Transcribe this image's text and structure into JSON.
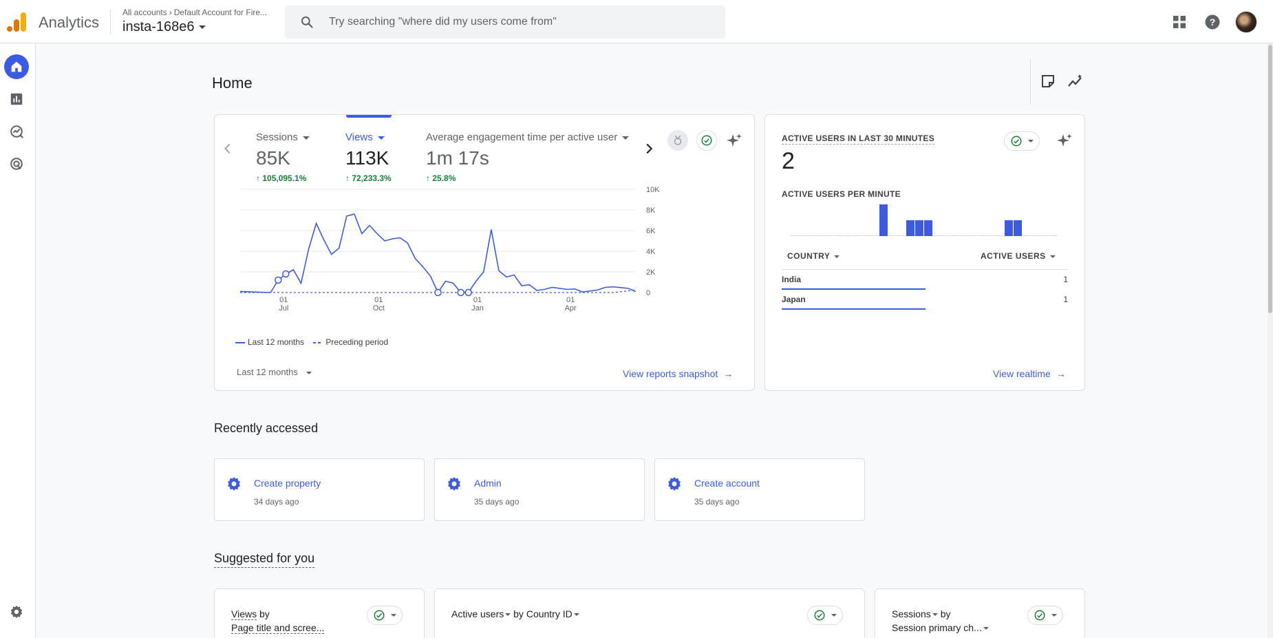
{
  "app": {
    "title": "Analytics",
    "breadcrumb": [
      "All accounts",
      "Default Account for Fire..."
    ],
    "property": "insta-168e6"
  },
  "search": {
    "placeholder": "Try searching \"where did my users come from\""
  },
  "header_icons": [
    "apps-icon",
    "help-icon",
    "avatar"
  ],
  "rail": [
    "home-icon",
    "reports-icon",
    "explore-icon",
    "advertising-icon",
    "settings-icon"
  ],
  "page": {
    "title": "Home"
  },
  "metrics": [
    {
      "label": "Sessions",
      "value": "85K",
      "delta": "105,095.1%"
    },
    {
      "label": "Views",
      "value": "113K",
      "delta": "72,233.3%"
    },
    {
      "label": "Average engagement time per active user",
      "value": "1m 17s",
      "delta": "25.8%"
    }
  ],
  "chart_data": {
    "type": "line",
    "x_tick_labels": [
      [
        "01",
        "Jul"
      ],
      [
        "01",
        "Oct"
      ],
      [
        "01",
        "Jan"
      ],
      [
        "01",
        "Apr"
      ]
    ],
    "y_tick_labels": [
      "10K",
      "8K",
      "6K",
      "4K",
      "2K",
      "0"
    ],
    "ylim": [
      0,
      10000
    ],
    "legend": [
      "Last 12 months",
      "Preceding period"
    ],
    "series": [
      {
        "name": "Last 12 months",
        "values": [
          100,
          80,
          50,
          20,
          0,
          1200,
          1800,
          2200,
          900,
          4200,
          6700,
          5100,
          3700,
          4300,
          7400,
          7600,
          5700,
          6500,
          5700,
          5000,
          5200,
          5300,
          4800,
          3300,
          2500,
          1600,
          0,
          1100,
          900,
          0,
          0,
          1100,
          2000,
          6100,
          2100,
          1500,
          1700,
          650,
          750,
          200,
          300,
          500,
          400,
          300,
          350,
          50,
          150,
          250,
          500,
          550,
          480,
          400,
          100
        ]
      },
      {
        "name": "Preceding period",
        "values": [
          0,
          0,
          0,
          0,
          0,
          0,
          0,
          0,
          0,
          0,
          0,
          0,
          0,
          0,
          0,
          0,
          0,
          0,
          0,
          0,
          0,
          0,
          0,
          0,
          0,
          0,
          0,
          0,
          0,
          0,
          0,
          0,
          0,
          0,
          0,
          0,
          0,
          0,
          0,
          0,
          0,
          0,
          0,
          0,
          0,
          0,
          0,
          0,
          0,
          0,
          80,
          150,
          250
        ]
      }
    ],
    "annotation_points": [
      5,
      6,
      26,
      29,
      30
    ]
  },
  "main_card": {
    "period": "Last 12 months",
    "link": "View reports snapshot"
  },
  "realtime": {
    "title": "ACTIVE USERS IN LAST 30 MINUTES",
    "value": "2",
    "per_minute_label": "ACTIVE USERS PER MINUTE",
    "per_minute_values": [
      0,
      0,
      0,
      0,
      0,
      0,
      0,
      0,
      0,
      0,
      1,
      0,
      0,
      0.5,
      0.5,
      0.5,
      0,
      0,
      0,
      0,
      0,
      0,
      0,
      0,
      0.5,
      0.5,
      0,
      0,
      0,
      0
    ],
    "col_country": "COUNTRY",
    "col_users": "ACTIVE USERS",
    "rows": [
      {
        "country": "India",
        "users": "1",
        "share": 0.5
      },
      {
        "country": "Japan",
        "users": "1",
        "share": 0.5
      }
    ],
    "link": "View realtime"
  },
  "recent": {
    "title": "Recently accessed",
    "items": [
      {
        "title": "Create property",
        "date": "34 days ago"
      },
      {
        "title": "Admin",
        "date": "35 days ago"
      },
      {
        "title": "Create account",
        "date": "35 days ago"
      }
    ]
  },
  "suggested": {
    "title": "Suggested for you",
    "cards": [
      {
        "metric": "Views",
        "by": "by",
        "dimension": "Page title and scree..."
      },
      {
        "metric": "Active users",
        "by": "by",
        "dimension": "Country ID"
      },
      {
        "metric": "Sessions",
        "by": "by",
        "dimension": "Session primary ch..."
      }
    ]
  },
  "colors": {
    "accent": "#3c5be0",
    "positive": "#188038",
    "logo_orange": "#f9ab00",
    "logo_dark": "#e37400"
  }
}
